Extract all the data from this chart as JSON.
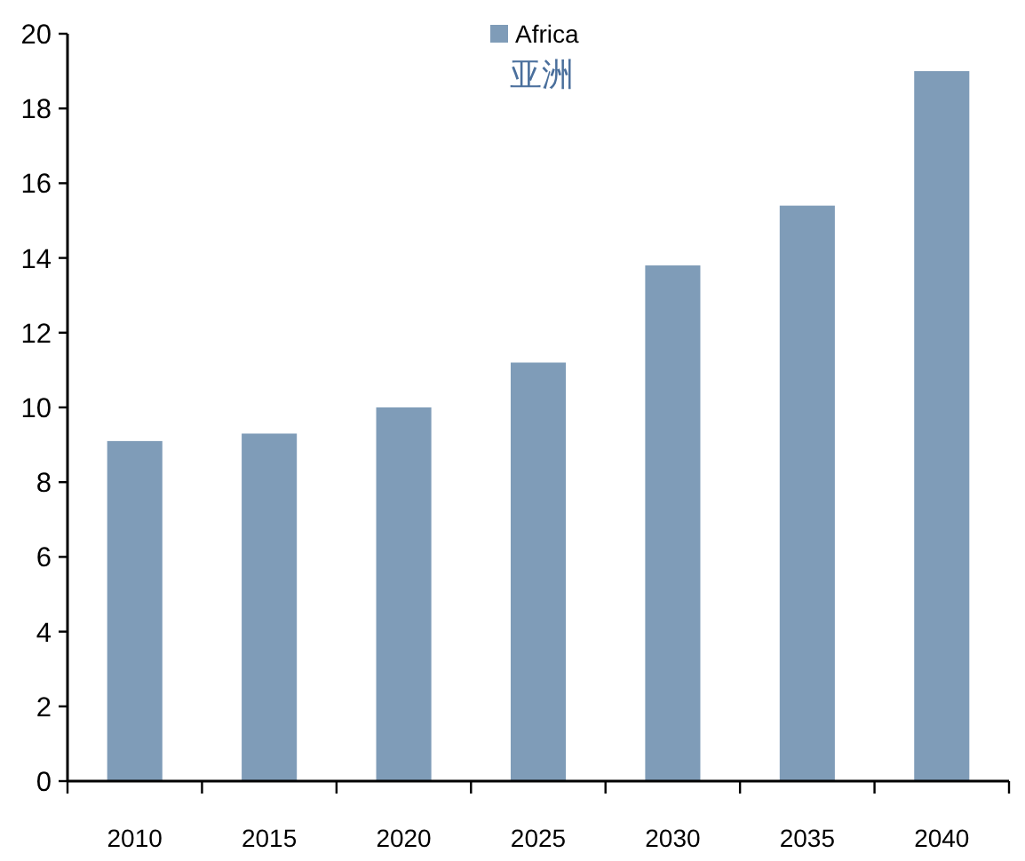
{
  "chart_data": {
    "type": "bar",
    "categories": [
      "2010",
      "2015",
      "2020",
      "2025",
      "2030",
      "2035",
      "2040"
    ],
    "series": [
      {
        "name": "Africa",
        "color": "#7f9cb8",
        "values": [
          9.1,
          9.3,
          10.0,
          11.2,
          13.8,
          15.4,
          19.0
        ]
      }
    ],
    "ylim": [
      0,
      20
    ],
    "yticks": [
      0,
      2,
      4,
      6,
      8,
      10,
      12,
      14,
      16,
      18,
      20
    ],
    "legend": "top",
    "annotations": [
      "亚洲"
    ]
  }
}
